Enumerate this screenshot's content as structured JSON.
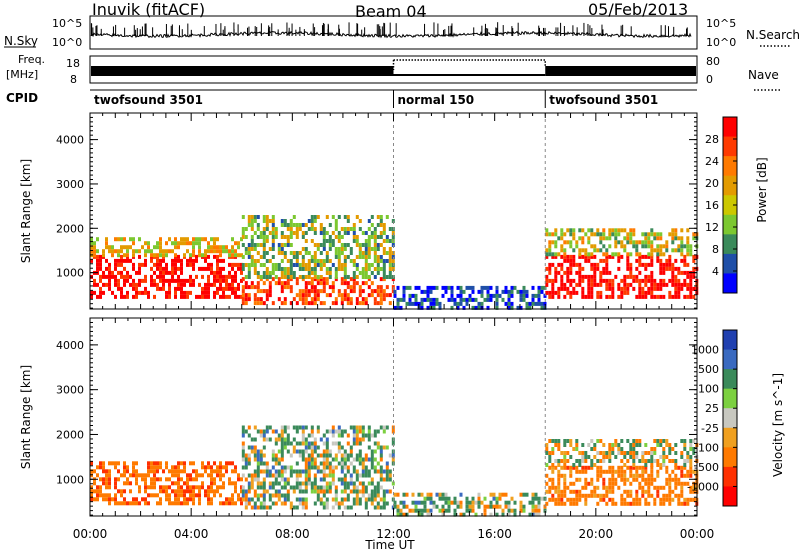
{
  "header": {
    "station": "Inuvik (fitACF)",
    "beam": "Beam 04",
    "date": "05/Feb/2013"
  },
  "aux_panels": {
    "nsky_label": "N.Sky",
    "nsky_ticks": [
      "10^5",
      "10^0"
    ],
    "nsky_right_ticks": [
      "10^5",
      "10^0"
    ],
    "nsearch_label": "N.Search",
    "freq_label": "Freq.",
    "freq_unit": "[MHz]",
    "freq_ticks": [
      "18",
      "8"
    ],
    "nave_label": "Nave",
    "nave_ticks": [
      "80",
      "0"
    ],
    "cpid_label": "CPID",
    "cpid_segments": [
      {
        "name": "twofsound 3501",
        "start": 0,
        "end": 12
      },
      {
        "name": "normal 150",
        "start": 12,
        "end": 18
      },
      {
        "name": "twofsound 3501",
        "start": 18,
        "end": 24
      }
    ]
  },
  "power_colorbar": {
    "label": "Power [dB]",
    "ticks": [
      "28",
      "24",
      "20",
      "16",
      "12",
      "8",
      "4"
    ],
    "colors": [
      "#ff0000",
      "#ff3a00",
      "#ff7a00",
      "#e39b00",
      "#ccc800",
      "#7cc830",
      "#3a8a5a",
      "#1f4fa8",
      "#0000ff"
    ]
  },
  "velocity_colorbar": {
    "label": "Velocity [m s^-1]",
    "ticks": [
      "1000",
      "500",
      "100",
      "25",
      "-25",
      "-100",
      "-500",
      "-1000"
    ],
    "colors": [
      "#2040b0",
      "#3a6ac0",
      "#3a8a5a",
      "#7cd040",
      "#c8c8c0",
      "#f0a020",
      "#ff7a00",
      "#ff3000",
      "#ff0000"
    ]
  },
  "chart_data": {
    "type": "heatmap",
    "x_label": "Time UT",
    "x_ticks": [
      "00:00",
      "04:00",
      "08:00",
      "12:00",
      "16:00",
      "20:00",
      "00:00"
    ],
    "x_range": [
      0,
      24
    ],
    "y_label": "Slant Range [km]",
    "y_ticks": [
      "4000",
      "3000",
      "2000",
      "1000"
    ],
    "y_range": [
      180,
      4600
    ],
    "mode_boundaries_hours": [
      12,
      18
    ],
    "panels": [
      {
        "name": "Power",
        "unit": "dB",
        "regions": [
          {
            "t0": 0,
            "t1": 6,
            "r0": 450,
            "r1": 1400,
            "value": 28
          },
          {
            "t0": 0,
            "t1": 6,
            "r0": 1400,
            "r1": 1800,
            "value": 16
          },
          {
            "t0": 6,
            "t1": 12,
            "r0": 300,
            "r1": 900,
            "value": 24
          },
          {
            "t0": 6,
            "t1": 12,
            "r0": 900,
            "r1": 2300,
            "value": 12
          },
          {
            "t0": 12,
            "t1": 18,
            "r0": 200,
            "r1": 700,
            "value": 6
          },
          {
            "t0": 18,
            "t1": 24,
            "r0": 450,
            "r1": 1400,
            "value": 28
          },
          {
            "t0": 18,
            "t1": 24,
            "r0": 1400,
            "r1": 2000,
            "value": 14
          }
        ]
      },
      {
        "name": "Velocity",
        "unit": "m s^-1",
        "regions": [
          {
            "t0": 0,
            "t1": 6,
            "r0": 450,
            "r1": 1400,
            "value": -400
          },
          {
            "t0": 6,
            "t1": 12,
            "r0": 400,
            "r1": 2200,
            "value": 100
          },
          {
            "t0": 12,
            "t1": 18,
            "r0": 200,
            "r1": 700,
            "value": 80
          },
          {
            "t0": 18,
            "t1": 24,
            "r0": 450,
            "r1": 1300,
            "value": -300
          },
          {
            "t0": 18,
            "t1": 24,
            "r0": 1300,
            "r1": 1900,
            "value": 0
          }
        ]
      }
    ]
  }
}
